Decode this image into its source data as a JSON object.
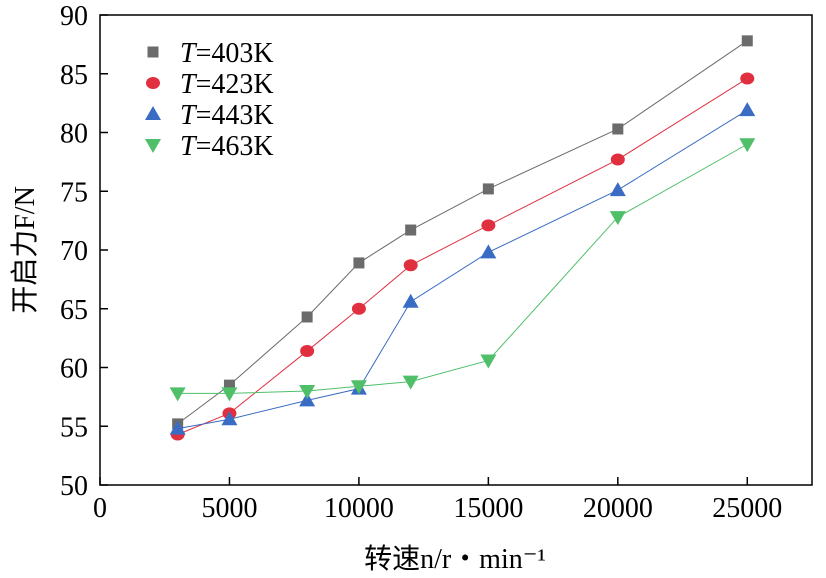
{
  "chart_data": {
    "type": "line",
    "title": "",
    "xlabel": "转速n/r・min⁻¹",
    "ylabel": "开启力F/N",
    "xlim": [
      0,
      27500
    ],
    "ylim": [
      50,
      90
    ],
    "xticks": [
      0,
      5000,
      10000,
      15000,
      20000,
      25000
    ],
    "xtick_labels": [
      "0",
      "5000",
      "10000",
      "15000",
      "20000",
      "25000"
    ],
    "yticks": [
      50,
      55,
      60,
      65,
      70,
      75,
      80,
      85,
      90
    ],
    "ytick_labels": [
      "50",
      "55",
      "60",
      "65",
      "70",
      "75",
      "80",
      "85",
      "90"
    ],
    "grid": false,
    "legend_position": "top-left",
    "series": [
      {
        "name": "T=403K",
        "legend_var": "T",
        "legend_value": "=403K",
        "marker": "square",
        "color": "#6b6b6b",
        "x": [
          3000,
          5000,
          8000,
          10000,
          12000,
          15000,
          20000,
          25000
        ],
        "y": [
          55.2,
          58.5,
          64.3,
          68.9,
          71.7,
          75.2,
          80.3,
          87.8
        ]
      },
      {
        "name": "T=423K",
        "legend_var": "T",
        "legend_value": "=423K",
        "marker": "circle",
        "color": "#e03040",
        "x": [
          3000,
          5000,
          8000,
          10000,
          12000,
          15000,
          20000,
          25000
        ],
        "y": [
          54.3,
          56.1,
          61.4,
          65.0,
          68.7,
          72.1,
          77.7,
          84.6
        ]
      },
      {
        "name": "T=443K",
        "legend_var": "T",
        "legend_value": "=443K",
        "marker": "triangle-up",
        "color": "#3a6cc4",
        "x": [
          3000,
          5000,
          8000,
          10000,
          12000,
          15000,
          20000,
          25000
        ],
        "y": [
          54.8,
          55.6,
          57.2,
          58.2,
          65.6,
          69.8,
          75.1,
          81.9
        ]
      },
      {
        "name": "T=463K",
        "legend_var": "T",
        "legend_value": "=463K",
        "marker": "triangle-down",
        "color": "#4fbf6a",
        "x": [
          3000,
          5000,
          8000,
          10000,
          12000,
          15000,
          20000,
          25000
        ],
        "y": [
          57.8,
          57.8,
          58.0,
          58.4,
          58.8,
          60.6,
          72.8,
          79.0
        ]
      }
    ]
  }
}
